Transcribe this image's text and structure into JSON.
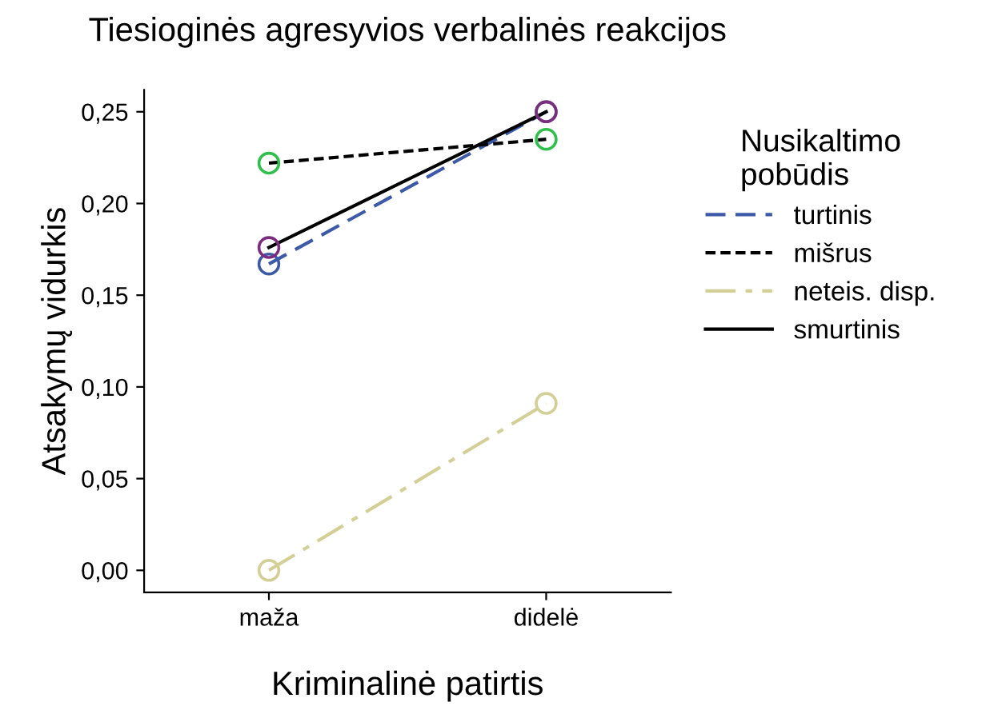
{
  "chart_data": {
    "type": "line",
    "title": "Tiesioginės agresyvios verbalinės reakcijos",
    "xlabel": "Kriminalinė patirtis",
    "ylabel": "Atsakymų vidurkis",
    "legend_title": "Nusikaltimo\npobūdis",
    "categories": [
      "maža",
      "didelė"
    ],
    "series": [
      {
        "name": "turtinis",
        "color": "#3c5aa8",
        "colors": [
          "#3c5aa8",
          "#3c5aa8"
        ],
        "line_style": "dashed",
        "values": [
          0.167,
          0.25
        ]
      },
      {
        "name": "mišrus",
        "color": "#000000",
        "colors": [
          "#2ec04a",
          "#2ec04a"
        ],
        "line_style": "dotted",
        "values": [
          0.222,
          0.235
        ]
      },
      {
        "name": "neteis. disp.",
        "color": "#d4cf96",
        "colors": [
          "#d4cf96",
          "#d4cf96"
        ],
        "line_style": "dashdot",
        "values": [
          0.0,
          0.091
        ]
      },
      {
        "name": "smurtinis",
        "color": "#000000",
        "colors": [
          "#7b2c7e",
          "#7b2c7e"
        ],
        "line_style": "solid",
        "values": [
          0.176,
          0.25
        ]
      }
    ],
    "ylim": [
      -0.012,
      0.262
    ],
    "yticks": [
      {
        "value": 0,
        "label": "0,00"
      },
      {
        "value": 0.05,
        "label": "0,05"
      },
      {
        "value": 0.1,
        "label": "0,10"
      },
      {
        "value": 0.15,
        "label": "0,15"
      },
      {
        "value": 0.2,
        "label": "0,20"
      },
      {
        "value": 0.25,
        "label": "0,25"
      }
    ],
    "marker": "circle",
    "grid": false,
    "legend": "right"
  }
}
